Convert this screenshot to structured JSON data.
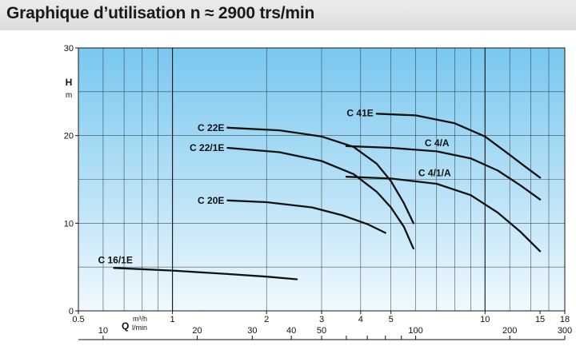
{
  "header": {
    "title": "Graphique d’utilisation n ≈ 2900 trs/min"
  },
  "chart_data": {
    "type": "line",
    "y_axis": {
      "label_main": "H",
      "label_unit": "m",
      "ylim": [
        0,
        30
      ],
      "ticks": [
        "0",
        "10",
        "20",
        "30"
      ],
      "tick_values": [
        0,
        10,
        20,
        30
      ]
    },
    "x_axis_m3h": {
      "scale": "log",
      "label_main": "Q",
      "label_unit": "m³/h",
      "xlim": [
        0.5,
        18
      ],
      "ticks": [
        "0.5",
        "1",
        "2",
        "3",
        "4",
        "5",
        "10",
        "15",
        "18"
      ],
      "tick_values": [
        0.5,
        1,
        2,
        3,
        4,
        5,
        10,
        15,
        18
      ]
    },
    "x_axis_lmin": {
      "label_unit": "l/min",
      "ticks": [
        "10",
        "20",
        "30",
        "40",
        "50",
        "100",
        "200",
        "300"
      ],
      "tick_values": [
        10,
        20,
        30,
        40,
        50,
        100,
        200,
        300
      ]
    },
    "grid": true,
    "series": [
      {
        "name": "C 16/1E",
        "x": [
          0.65,
          1.0,
          1.5,
          2.0,
          2.5
        ],
        "y": [
          4.9,
          4.6,
          4.2,
          3.9,
          3.6
        ]
      },
      {
        "name": "C 20E",
        "x": [
          1.5,
          2.0,
          2.8,
          3.5,
          4.2,
          4.8
        ],
        "y": [
          12.6,
          12.4,
          11.8,
          10.9,
          9.9,
          8.9
        ]
      },
      {
        "name": "C 22E",
        "x": [
          1.5,
          2.2,
          3.0,
          3.8,
          4.5,
          5.0,
          5.5,
          5.9
        ],
        "y": [
          20.9,
          20.6,
          19.9,
          18.7,
          16.8,
          14.8,
          12.3,
          10.0
        ]
      },
      {
        "name": "C 22/1E",
        "x": [
          1.5,
          2.2,
          3.0,
          3.8,
          4.5,
          5.0,
          5.5,
          5.9
        ],
        "y": [
          18.6,
          18.1,
          17.1,
          15.6,
          13.6,
          11.8,
          9.6,
          7.1
        ]
      },
      {
        "name": "C 41E",
        "x": [
          4.5,
          6.0,
          8.0,
          10.0,
          12.0,
          13.5,
          15.0
        ],
        "y": [
          22.5,
          22.3,
          21.4,
          19.9,
          17.8,
          16.4,
          15.2
        ]
      },
      {
        "name": "C 4/A",
        "x": [
          3.6,
          5.0,
          7.0,
          9.0,
          11.0,
          13.0,
          15.0
        ],
        "y": [
          18.8,
          18.6,
          18.2,
          17.4,
          16.0,
          14.3,
          12.7
        ]
      },
      {
        "name": "C 4/1/A",
        "x": [
          3.6,
          5.0,
          7.0,
          9.0,
          11.0,
          13.0,
          15.0
        ],
        "y": [
          15.3,
          15.1,
          14.5,
          13.2,
          11.2,
          9.0,
          6.8
        ]
      }
    ]
  }
}
